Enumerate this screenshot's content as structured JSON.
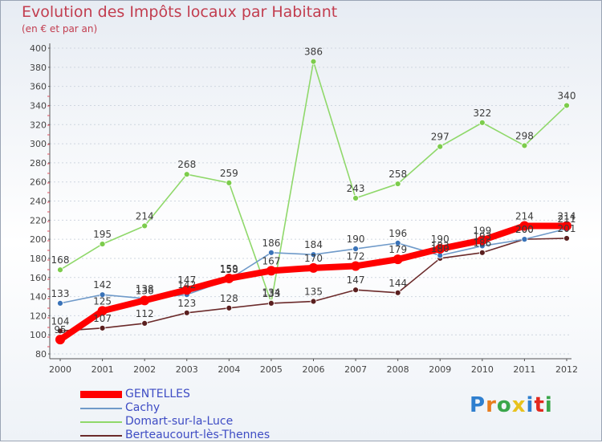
{
  "chart_data": {
    "type": "line",
    "title": "Evolution des Impôts locaux par Habitant",
    "subtitle": "(en € et par an)",
    "xlabel": "",
    "ylabel": "",
    "ylim": [
      80,
      400
    ],
    "ytick_step": 20,
    "grid": "horizontal",
    "legend_position": "bottom-left",
    "categories": [
      "2000",
      "2001",
      "2002",
      "2003",
      "2004",
      "2005",
      "2006",
      "2007",
      "2008",
      "2009",
      "2010",
      "2011",
      "2012"
    ],
    "series": [
      {
        "name": "GENTELLES",
        "color": "#ff0000",
        "values": [
          95,
          125,
          136,
          147,
          159,
          167,
          170,
          172,
          179,
          190,
          199,
          214,
          214
        ]
      },
      {
        "name": "Cachy",
        "color": "#6f9ac9",
        "values": [
          133,
          142,
          138,
          142,
          158,
          186,
          184,
          190,
          196,
          183,
          193,
          200,
          211
        ]
      },
      {
        "name": "Domart-sur-la-Luce",
        "color": "#8fd86a",
        "values": [
          168,
          195,
          214,
          268,
          259,
          134,
          386,
          243,
          258,
          297,
          322,
          298,
          340
        ]
      },
      {
        "name": "Berteaucourt-lès-Thennes",
        "color": "#6b2a2a",
        "values": [
          104,
          107,
          112,
          123,
          128,
          133,
          135,
          147,
          144,
          180,
          186,
          200,
          201
        ]
      }
    ]
  },
  "logo": {
    "text": "Proxiti",
    "letter_colors": [
      "#2f7fcf",
      "#e87d1e",
      "#3aa64a",
      "#e8c21e",
      "#2f7fcf",
      "#e2281e",
      "#3aa64a"
    ]
  }
}
